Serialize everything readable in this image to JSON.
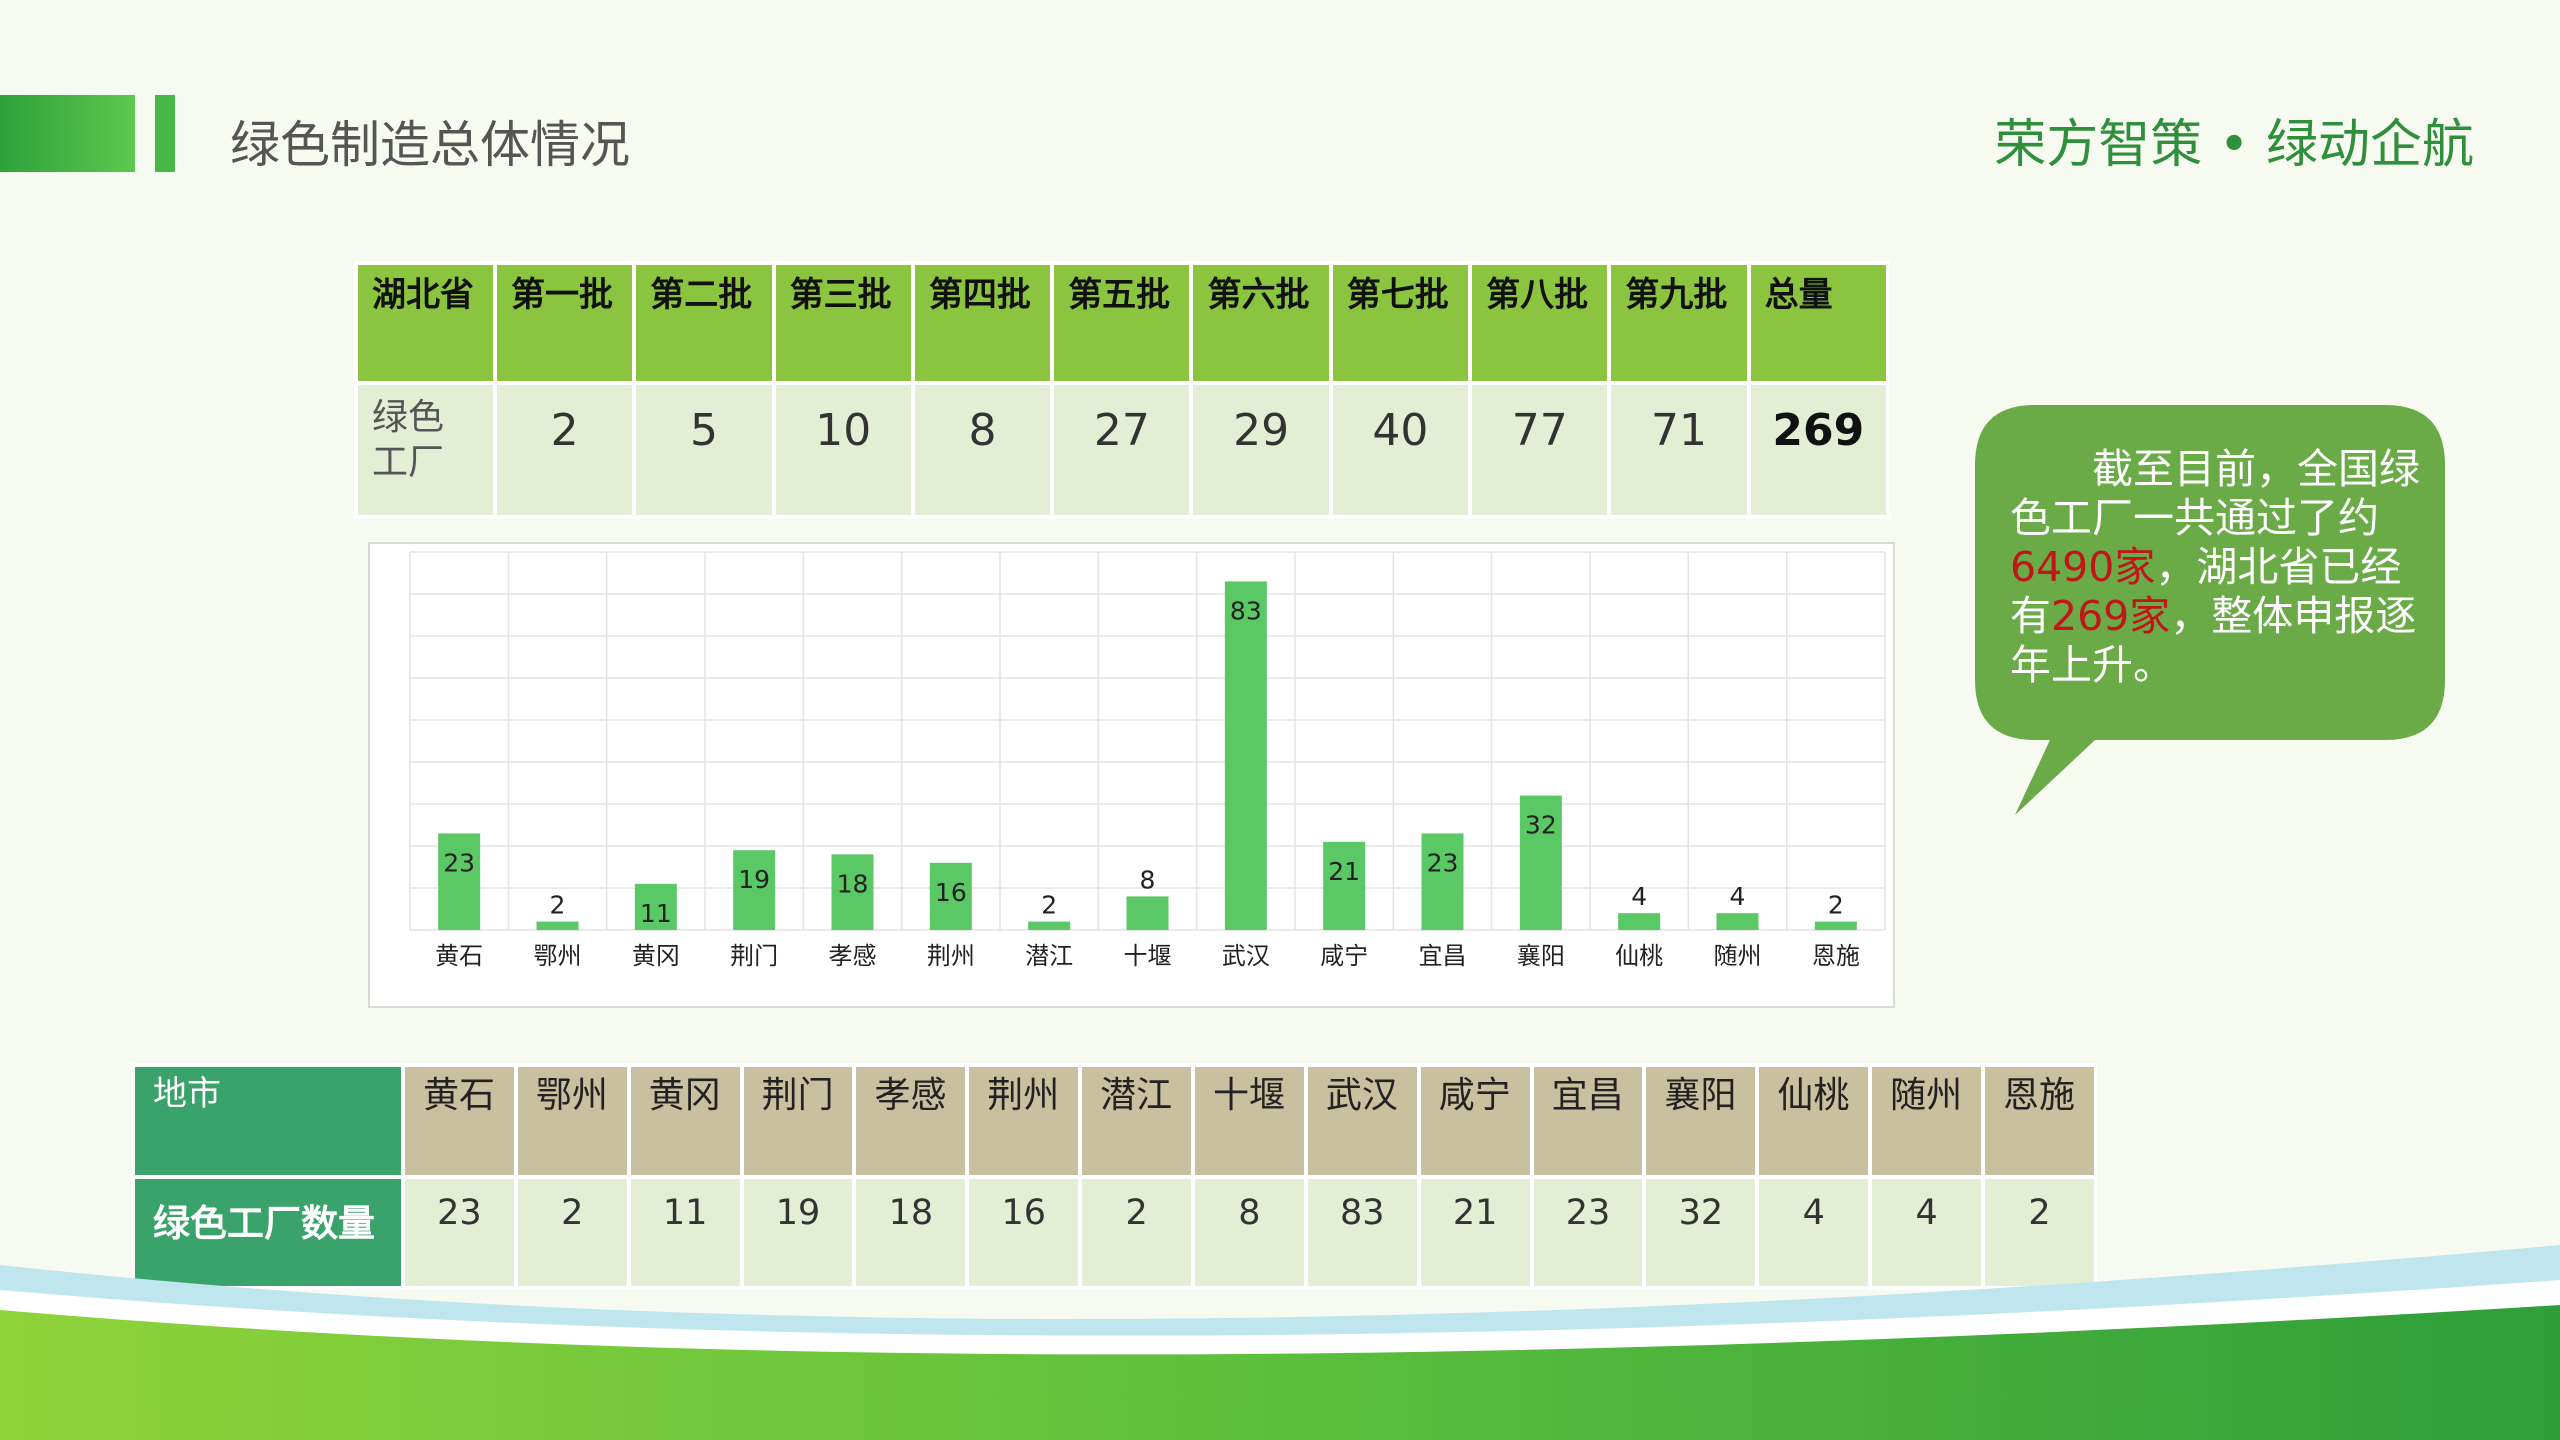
{
  "header": {
    "title": "绿色制造总体情况",
    "slogan": "荣方智策 • 绿动企航"
  },
  "batch_table": {
    "corner": "湖北省",
    "headers": [
      "第一批",
      "第二批",
      "第三批",
      "第四批",
      "第五批",
      "第六批",
      "第七批",
      "第八批",
      "第九批",
      "总量"
    ],
    "row_label": "绿色工厂",
    "values": [
      "2",
      "5",
      "10",
      "8",
      "27",
      "29",
      "40",
      "77",
      "71",
      "269"
    ]
  },
  "chart_data": {
    "type": "bar",
    "categories": [
      "黄石",
      "鄂州",
      "黄冈",
      "荆门",
      "孝感",
      "荆州",
      "潜江",
      "十堰",
      "武汉",
      "咸宁",
      "宜昌",
      "襄阳",
      "仙桃",
      "随州",
      "恩施"
    ],
    "values": [
      23,
      2,
      11,
      19,
      18,
      16,
      2,
      8,
      83,
      21,
      23,
      32,
      4,
      4,
      2
    ],
    "ylim": [
      0,
      90
    ],
    "grid": true,
    "bar_color": "#5ac864"
  },
  "callout": {
    "part1": "截至目前，全国绿色工厂一共通过了约",
    "hl1": "6490家",
    "part2": "，湖北省已经有",
    "hl2": "269家",
    "part3": "，整体申报逐年上升。"
  },
  "city_table": {
    "row1_label": "地市",
    "cities": [
      "黄石",
      "鄂州",
      "黄冈",
      "荆门",
      "孝感",
      "荆州",
      "潜江",
      "十堰",
      "武汉",
      "咸宁",
      "宜昌",
      "襄阳",
      "仙桃",
      "随州",
      "恩施"
    ],
    "row2_label": "绿色工厂数量",
    "counts": [
      "23",
      "2",
      "11",
      "19",
      "18",
      "16",
      "2",
      "8",
      "83",
      "21",
      "23",
      "32",
      "4",
      "4",
      "2"
    ]
  },
  "colors": {
    "accent_green": "#47b848",
    "header_green": "#8bc53f",
    "cell_bg": "#e4eed5",
    "city_header": "#c8c09f",
    "row_label_green": "#3aa36b",
    "bubble": "#6aaa47",
    "highlight_red": "#c0161a"
  }
}
